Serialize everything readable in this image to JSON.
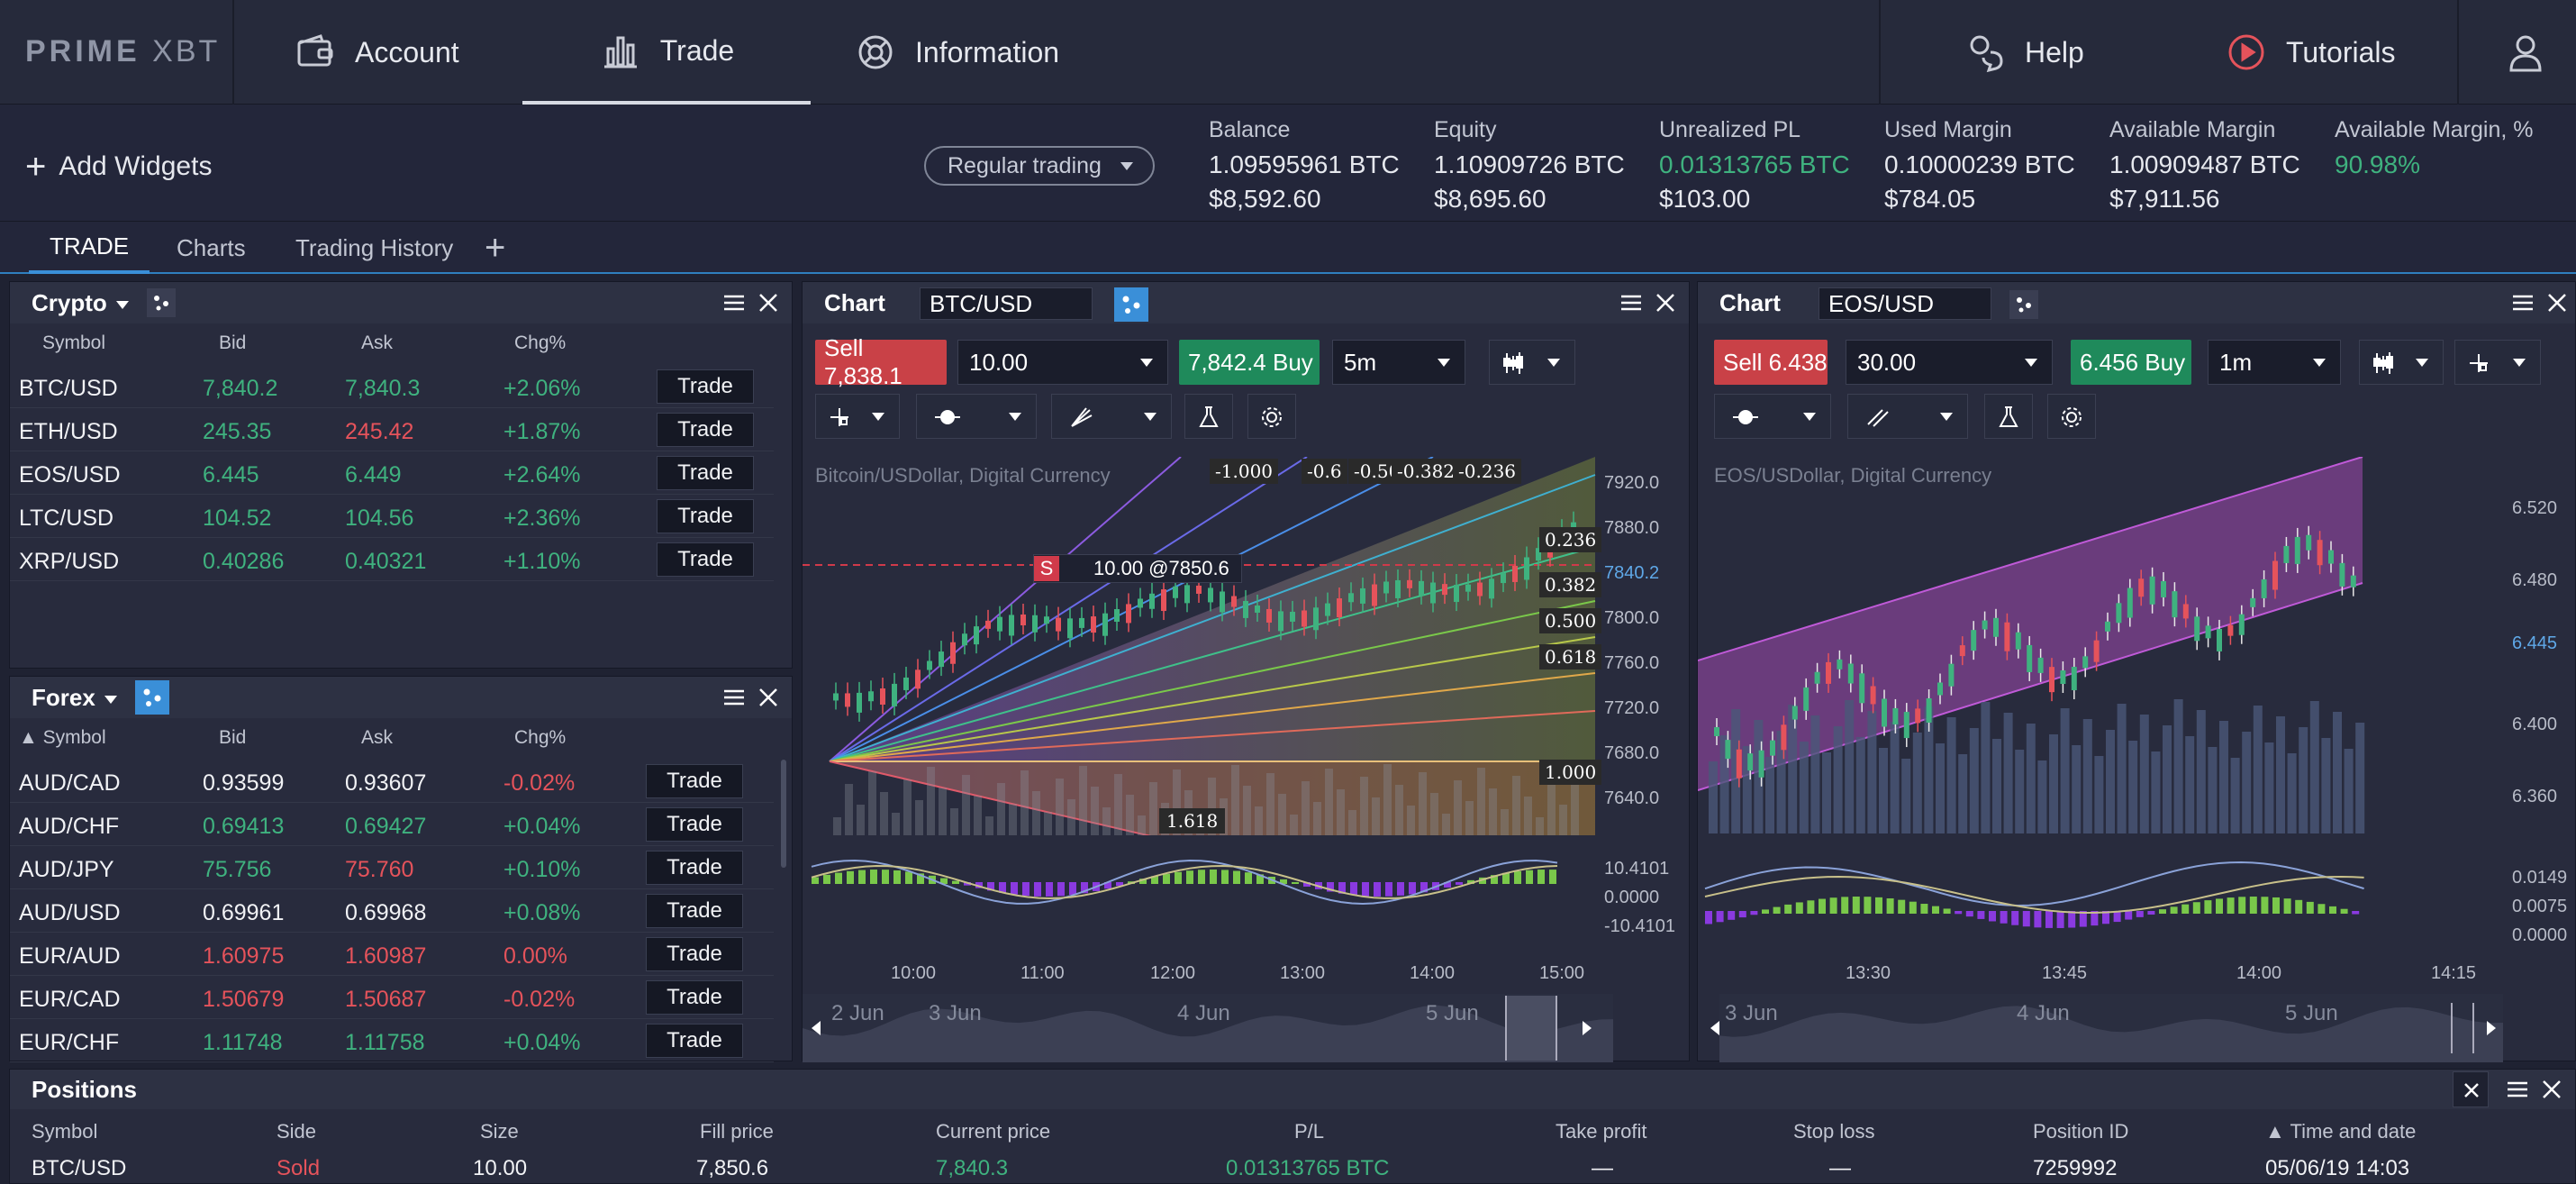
{
  "logo": {
    "prime": "PRIME",
    "xbt": "XBT"
  },
  "nav": {
    "account": "Account",
    "trade": "Trade",
    "information": "Information",
    "help": "Help",
    "tutorials": "Tutorials"
  },
  "account_bar": {
    "add_widgets": "Add Widgets",
    "mode": "Regular trading",
    "balance": {
      "label": "Balance",
      "btc": "1.09595961 BTC",
      "usd": "$8,592.60"
    },
    "equity": {
      "label": "Equity",
      "btc": "1.10909726 BTC",
      "usd": "$8,695.60"
    },
    "unrealized": {
      "label": "Unrealized PL",
      "btc": "0.01313765 BTC",
      "usd": "$103.00"
    },
    "used_margin": {
      "label": "Used Margin",
      "btc": "0.10000239 BTC",
      "usd": "$784.05"
    },
    "available_margin": {
      "label": "Available Margin",
      "btc": "1.00909487 BTC",
      "usd": "$7,911.56"
    },
    "available_margin_pct": {
      "label": "Available Margin, %",
      "value": "90.98%"
    }
  },
  "tabs": [
    "TRADE",
    "Charts",
    "Trading History"
  ],
  "crypto": {
    "title": "Crypto",
    "columns": [
      "Symbol",
      "Bid",
      "Ask",
      "Chg%"
    ],
    "rows": [
      {
        "symbol": "BTC/USD",
        "bid": "7,840.2",
        "ask": "7,840.3",
        "chg": "+2.06%",
        "bid_color": "green",
        "ask_color": "green",
        "chg_color": "green"
      },
      {
        "symbol": "ETH/USD",
        "bid": "245.35",
        "ask": "245.42",
        "chg": "+1.87%",
        "bid_color": "green",
        "ask_color": "red",
        "chg_color": "green"
      },
      {
        "symbol": "EOS/USD",
        "bid": "6.445",
        "ask": "6.449",
        "chg": "+2.64%",
        "bid_color": "green",
        "ask_color": "green",
        "chg_color": "green"
      },
      {
        "symbol": "LTC/USD",
        "bid": "104.52",
        "ask": "104.56",
        "chg": "+2.36%",
        "bid_color": "green",
        "ask_color": "green",
        "chg_color": "green"
      },
      {
        "symbol": "XRP/USD",
        "bid": "0.40286",
        "ask": "0.40321",
        "chg": "+1.10%",
        "bid_color": "green",
        "ask_color": "green",
        "chg_color": "green"
      }
    ],
    "trade_label": "Trade"
  },
  "forex": {
    "title": "Forex",
    "columns": [
      "Symbol",
      "Bid",
      "Ask",
      "Chg%"
    ],
    "rows": [
      {
        "symbol": "AUD/CAD",
        "bid": "0.93599",
        "ask": "0.93607",
        "chg": "-0.02%",
        "bid_color": "white",
        "ask_color": "white",
        "chg_color": "red"
      },
      {
        "symbol": "AUD/CHF",
        "bid": "0.69413",
        "ask": "0.69427",
        "chg": "+0.04%",
        "bid_color": "green",
        "ask_color": "green",
        "chg_color": "green"
      },
      {
        "symbol": "AUD/JPY",
        "bid": "75.756",
        "ask": "75.760",
        "chg": "+0.10%",
        "bid_color": "green",
        "ask_color": "red",
        "chg_color": "green"
      },
      {
        "symbol": "AUD/USD",
        "bid": "0.69961",
        "ask": "0.69968",
        "chg": "+0.08%",
        "bid_color": "white",
        "ask_color": "white",
        "chg_color": "green"
      },
      {
        "symbol": "EUR/AUD",
        "bid": "1.60975",
        "ask": "1.60987",
        "chg": "0.00%",
        "bid_color": "red",
        "ask_color": "red",
        "chg_color": "red"
      },
      {
        "symbol": "EUR/CAD",
        "bid": "1.50679",
        "ask": "1.50687",
        "chg": "-0.02%",
        "bid_color": "red",
        "ask_color": "red",
        "chg_color": "red"
      },
      {
        "symbol": "EUR/CHF",
        "bid": "1.11748",
        "ask": "1.11758",
        "chg": "+0.04%",
        "bid_color": "green",
        "ask_color": "green",
        "chg_color": "green"
      }
    ],
    "trade_label": "Trade"
  },
  "chart1": {
    "title": "Chart",
    "symbol": "BTC/USD",
    "sell": "Sell 7,838.1",
    "qty": "10.00",
    "buy": "7,842.4 Buy",
    "interval": "5m",
    "legend": "Bitcoin/USDollar, Digital Currency",
    "price_axis": [
      "7920.0",
      "7880.0",
      "7840.2",
      "7800.0",
      "7760.0",
      "7720.0",
      "7680.0",
      "7640.0"
    ],
    "osc_axis": [
      "10.4101",
      "0.0000",
      "-10.4101"
    ],
    "time_axis": [
      "10:00",
      "11:00",
      "12:00",
      "13:00",
      "14:00",
      "15:00"
    ],
    "fib_top": [
      "-1.000",
      "-0.6",
      "-0.50",
      "-0.382",
      "-0.236"
    ],
    "fib_right": [
      "0.236",
      "0.382",
      "0.500",
      "0.618",
      "1.000"
    ],
    "fib_bottom": "1.618",
    "order_tag": "S",
    "order_label": "10.00 @7850.6",
    "nav_dates": [
      "2 Jun",
      "3 Jun",
      "4 Jun",
      "5 Jun"
    ]
  },
  "chart2": {
    "title": "Chart",
    "symbol": "EOS/USD",
    "sell": "Sell 6.438",
    "qty": "30.00",
    "buy": "6.456 Buy",
    "interval": "1m",
    "legend": "EOS/USDollar, Digital Currency",
    "price_axis": [
      "6.520",
      "6.480",
      "6.445",
      "6.400",
      "6.360"
    ],
    "osc_axis": [
      "0.0149",
      "0.0075",
      "0.0000"
    ],
    "time_axis": [
      "13:30",
      "13:45",
      "14:00",
      "14:15"
    ],
    "nav_dates": [
      "3 Jun",
      "4 Jun",
      "5 Jun"
    ]
  },
  "positions": {
    "title": "Positions",
    "columns": [
      "Symbol",
      "Side",
      "Size",
      "Fill price",
      "Current price",
      "P/L",
      "Take profit",
      "Stop loss",
      "Position ID",
      "Time and date"
    ],
    "row": {
      "symbol": "BTC/USD",
      "side": "Sold",
      "size": "10.00",
      "fill": "7,850.6",
      "current": "7,840.3",
      "pl": "0.01313765 BTC",
      "tp": "—",
      "sl": "—",
      "id": "7259992",
      "time": "05/06/19 14:03"
    }
  },
  "colors": {
    "buy": "#1f8a5b",
    "sell": "#c94147",
    "accent": "#3a8fd8",
    "green": "#3fb27f",
    "red": "#e5535b"
  }
}
